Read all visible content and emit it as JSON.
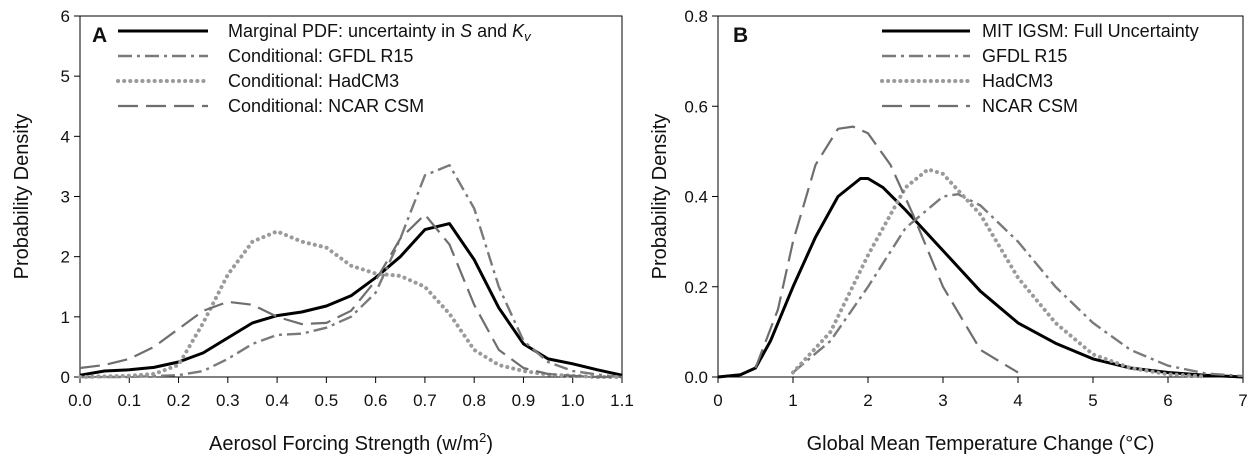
{
  "chart_data": [
    {
      "type": "line",
      "panel_label": "A",
      "xlabel": "Aerosol Forcing Strength (w/m²)",
      "xlabel_parts": [
        "Aerosol Forcing Strength (w/m",
        "2",
        ")"
      ],
      "ylabel": "Probability Density",
      "xlim": [
        0,
        1.1
      ],
      "ylim": [
        0,
        6
      ],
      "xticks": [
        "0.0",
        "0.1",
        "0.2",
        "0.3",
        "0.4",
        "0.5",
        "0.6",
        "0.7",
        "0.8",
        "0.9",
        "1.0",
        "1.1"
      ],
      "yticks": [
        "0",
        "1",
        "2",
        "3",
        "4",
        "5",
        "6"
      ],
      "grid": false,
      "legend_position": "top-right",
      "series": [
        {
          "name": "Marginal PDF: uncertainty in S and Kv",
          "legend_parts": [
            "Marginal PDF: uncertainty in ",
            "S",
            " and ",
            "K",
            "v"
          ],
          "style": "solid",
          "color": "#000000",
          "x": [
            0.0,
            0.05,
            0.1,
            0.15,
            0.2,
            0.25,
            0.3,
            0.35,
            0.4,
            0.45,
            0.5,
            0.55,
            0.6,
            0.65,
            0.7,
            0.75,
            0.8,
            0.85,
            0.9,
            0.95,
            1.0,
            1.05,
            1.1
          ],
          "y": [
            0.03,
            0.1,
            0.12,
            0.16,
            0.25,
            0.4,
            0.65,
            0.9,
            1.02,
            1.08,
            1.18,
            1.35,
            1.65,
            2.0,
            2.45,
            2.55,
            1.95,
            1.15,
            0.55,
            0.3,
            0.22,
            0.12,
            0.03
          ]
        },
        {
          "name": "Conditional: GFDL R15",
          "style": "dashdot",
          "color": "#7a7a7a",
          "x": [
            0.0,
            0.1,
            0.2,
            0.25,
            0.3,
            0.35,
            0.4,
            0.45,
            0.5,
            0.55,
            0.6,
            0.65,
            0.7,
            0.75,
            0.8,
            0.85,
            0.9,
            0.95,
            1.0,
            1.05,
            1.1
          ],
          "y": [
            0.0,
            0.0,
            0.03,
            0.1,
            0.3,
            0.55,
            0.7,
            0.72,
            0.82,
            1.0,
            1.4,
            2.3,
            3.35,
            3.52,
            2.8,
            1.5,
            0.6,
            0.25,
            0.1,
            0.04,
            0.0
          ]
        },
        {
          "name": "Conditional: HadCM3",
          "style": "dotted",
          "color": "#9a9a9a",
          "x": [
            0.0,
            0.1,
            0.15,
            0.2,
            0.25,
            0.3,
            0.35,
            0.4,
            0.45,
            0.5,
            0.55,
            0.6,
            0.65,
            0.7,
            0.75,
            0.8,
            0.85,
            0.9,
            0.95,
            1.0,
            1.05,
            1.1
          ],
          "y": [
            0.0,
            0.02,
            0.05,
            0.2,
            0.9,
            1.7,
            2.25,
            2.42,
            2.25,
            2.15,
            1.85,
            1.72,
            1.68,
            1.5,
            1.05,
            0.45,
            0.2,
            0.1,
            0.04,
            0.02,
            0.0,
            0.0
          ]
        },
        {
          "name": "Conditional: NCAR CSM",
          "style": "longdash",
          "color": "#6e6e6e",
          "x": [
            0.0,
            0.05,
            0.1,
            0.15,
            0.2,
            0.25,
            0.3,
            0.35,
            0.4,
            0.45,
            0.5,
            0.55,
            0.6,
            0.65,
            0.7,
            0.75,
            0.8,
            0.85,
            0.9,
            0.95,
            1.0,
            1.05,
            1.1
          ],
          "y": [
            0.15,
            0.2,
            0.3,
            0.5,
            0.8,
            1.1,
            1.25,
            1.2,
            1.0,
            0.88,
            0.9,
            1.1,
            1.6,
            2.3,
            2.7,
            2.2,
            1.2,
            0.45,
            0.15,
            0.05,
            0.02,
            0.0,
            0.0
          ]
        }
      ]
    },
    {
      "type": "line",
      "panel_label": "B",
      "xlabel": "Global Mean Temperature Change (°C)",
      "ylabel": "Probability Density",
      "xlim": [
        0,
        7
      ],
      "ylim": [
        0,
        0.8
      ],
      "xticks": [
        "0",
        "1",
        "2",
        "3",
        "4",
        "5",
        "6",
        "7"
      ],
      "yticks": [
        "0.0",
        "0.2",
        "0.4",
        "0.6",
        "0.8"
      ],
      "grid": false,
      "legend_position": "top-right",
      "series": [
        {
          "name": "MIT IGSM: Full Uncertainty",
          "style": "solid",
          "color": "#000000",
          "x": [
            0.0,
            0.3,
            0.5,
            0.7,
            1.0,
            1.3,
            1.6,
            1.9,
            2.0,
            2.2,
            2.5,
            3.0,
            3.5,
            4.0,
            4.5,
            5.0,
            5.5,
            6.0,
            6.5,
            7.0
          ],
          "y": [
            0.0,
            0.005,
            0.02,
            0.08,
            0.2,
            0.31,
            0.4,
            0.44,
            0.44,
            0.42,
            0.37,
            0.28,
            0.19,
            0.12,
            0.075,
            0.04,
            0.02,
            0.01,
            0.004,
            0.0
          ]
        },
        {
          "name": "GFDL R15",
          "style": "dashdot",
          "color": "#7a7a7a",
          "x": [
            1.0,
            1.5,
            2.0,
            2.5,
            3.0,
            3.2,
            3.5,
            4.0,
            4.5,
            5.0,
            5.5,
            6.0,
            6.5,
            7.0
          ],
          "y": [
            0.01,
            0.08,
            0.2,
            0.33,
            0.4,
            0.405,
            0.38,
            0.3,
            0.2,
            0.12,
            0.06,
            0.025,
            0.008,
            0.002
          ]
        },
        {
          "name": "HadCM3",
          "style": "dotted",
          "color": "#9a9a9a",
          "x": [
            1.0,
            1.5,
            2.0,
            2.5,
            2.8,
            3.0,
            3.5,
            4.0,
            4.5,
            5.0,
            5.5,
            6.0,
            6.5
          ],
          "y": [
            0.01,
            0.1,
            0.27,
            0.42,
            0.46,
            0.45,
            0.36,
            0.22,
            0.12,
            0.05,
            0.02,
            0.006,
            0.001
          ]
        },
        {
          "name": "NCAR CSM",
          "style": "longdash",
          "color": "#6e6e6e",
          "x": [
            0.5,
            0.8,
            1.0,
            1.3,
            1.6,
            1.8,
            2.0,
            2.3,
            2.6,
            3.0,
            3.5,
            4.0
          ],
          "y": [
            0.02,
            0.15,
            0.3,
            0.47,
            0.55,
            0.555,
            0.54,
            0.47,
            0.36,
            0.2,
            0.06,
            0.01
          ]
        }
      ]
    }
  ]
}
